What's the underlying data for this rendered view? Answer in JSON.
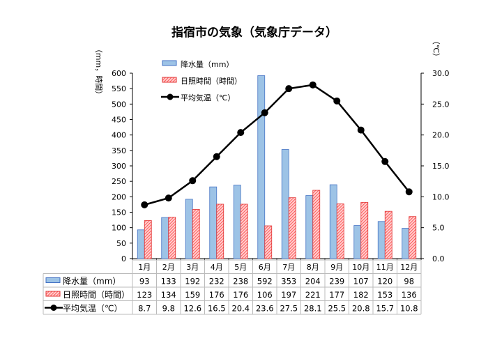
{
  "chart_data": {
    "type": "bar+line",
    "title": "指宿市の気象（気象庁データ）",
    "ylabel_left": "（mm，時間）",
    "ylabel_right": "（℃）",
    "ylim_left": [
      0,
      600
    ],
    "yticks_left": [
      "0",
      "50",
      "100",
      "150",
      "200",
      "250",
      "300",
      "350",
      "400",
      "450",
      "500",
      "550",
      "600"
    ],
    "ylim_right": [
      0,
      30
    ],
    "yticks_right": [
      "0.0",
      "5.0",
      "10.0",
      "15.0",
      "20.0",
      "25.0",
      "30.0"
    ],
    "categories": [
      "1月",
      "2月",
      "3月",
      "4月",
      "5月",
      "6月",
      "7月",
      "8月",
      "9月",
      "10月",
      "11月",
      "12月"
    ],
    "legend_position": "top-left",
    "grid": false,
    "series": [
      {
        "name": "降水量（mm）",
        "type": "bar",
        "axis": "left",
        "color": "#9dc3e6",
        "values": [
          93,
          133,
          192,
          232,
          238,
          592,
          353,
          204,
          239,
          107,
          120,
          98
        ]
      },
      {
        "name": "日照時間（時間）",
        "type": "bar",
        "axis": "left",
        "color": "#ff4d4d",
        "pattern": "hatched",
        "values": [
          123,
          134,
          159,
          176,
          176,
          106,
          197,
          221,
          177,
          182,
          153,
          136
        ]
      },
      {
        "name": "平均気温（℃）",
        "type": "line",
        "axis": "right",
        "color": "#000000",
        "values": [
          "8.7",
          "9.8",
          "12.6",
          "16.5",
          "20.4",
          "23.6",
          "27.5",
          "28.1",
          "25.5",
          "20.8",
          "15.7",
          "10.8"
        ]
      }
    ]
  }
}
